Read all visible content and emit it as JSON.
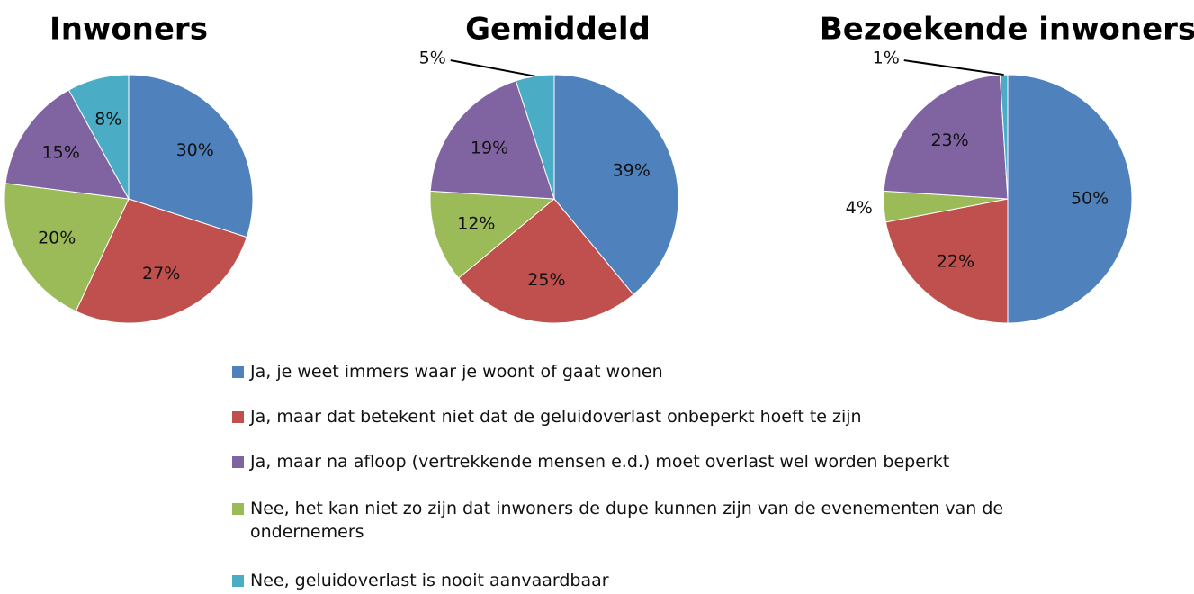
{
  "categories": [
    "Ja, je weet immers waar je woont of gaat wonen",
    "Ja, maar dat betekent niet dat de geluidoverlast onbeperkt hoeft te zijn",
    "Nee, het kan niet zo zijn dat inwoners de dupe kunnen zijn van de evenementen van de ondernemers",
    "Ja, maar na afloop (vertrekkende mensen e.d.) moet overlast wel worden beperkt",
    "Nee, geluidoverlast is nooit aanvaardbaar"
  ],
  "colors": [
    "#4f81bd",
    "#c0504d",
    "#9bbb59",
    "#8064a2",
    "#4bacc6"
  ],
  "chart_data": [
    {
      "type": "pie",
      "title": "Inwoners",
      "values": [
        30,
        27,
        20,
        15,
        8
      ],
      "value_labels": [
        "30%",
        "27%",
        "20%",
        "15%",
        "8%"
      ]
    },
    {
      "type": "pie",
      "title": "Gemiddeld",
      "values": [
        39,
        25,
        12,
        19,
        5
      ],
      "value_labels": [
        "39%",
        "25%",
        "12%",
        "19%",
        "5%"
      ]
    },
    {
      "type": "pie",
      "title": "Bezoekende inwoners",
      "values": [
        50,
        22,
        4,
        23,
        1
      ],
      "value_labels": [
        "50%",
        "22%",
        "4%",
        "23%",
        "1%"
      ]
    }
  ]
}
